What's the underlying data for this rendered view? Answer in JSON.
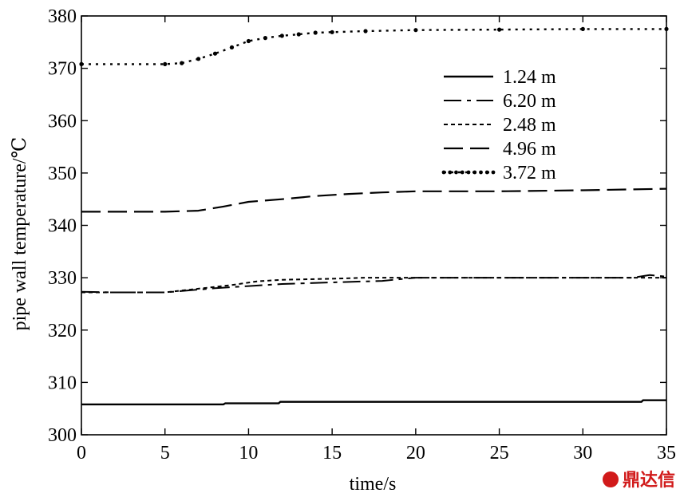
{
  "chart_data": {
    "type": "line",
    "title": "",
    "xlabel": "time/s",
    "ylabel": "pipe wall temperature/℃",
    "xlim": [
      0,
      35
    ],
    "ylim": [
      300,
      380
    ],
    "x_ticks": [
      0,
      5,
      10,
      15,
      20,
      25,
      30,
      35
    ],
    "y_ticks": [
      300,
      310,
      320,
      330,
      340,
      350,
      360,
      370,
      380
    ],
    "grid": false,
    "legend_position": "top-right",
    "series": [
      {
        "name": "1.24 m",
        "style": "solid",
        "points": [
          [
            0,
            305.8
          ],
          [
            5,
            305.8
          ],
          [
            8.5,
            305.8
          ],
          [
            8.6,
            306.0
          ],
          [
            11.8,
            306.0
          ],
          [
            11.9,
            306.3
          ],
          [
            20,
            306.3
          ],
          [
            33.5,
            306.3
          ],
          [
            33.6,
            306.6
          ],
          [
            35,
            306.6
          ]
        ]
      },
      {
        "name": "6.20 m",
        "style": "dash-dot",
        "points": [
          [
            0,
            327.3
          ],
          [
            2,
            327.2
          ],
          [
            5,
            327.2
          ],
          [
            6.5,
            327.6
          ],
          [
            8,
            328.0
          ],
          [
            10,
            328.4
          ],
          [
            12,
            328.8
          ],
          [
            15,
            329.1
          ],
          [
            18,
            329.4
          ],
          [
            20,
            330.0
          ],
          [
            25,
            330.0
          ],
          [
            30,
            330.0
          ],
          [
            33,
            330.0
          ],
          [
            34,
            330.5
          ],
          [
            35,
            330.2
          ]
        ]
      },
      {
        "name": "2.48 m",
        "style": "dotted-short",
        "points": [
          [
            0,
            327.2
          ],
          [
            5,
            327.2
          ],
          [
            7,
            327.9
          ],
          [
            9,
            328.6
          ],
          [
            10.5,
            329.3
          ],
          [
            12,
            329.6
          ],
          [
            15,
            329.8
          ],
          [
            17,
            330.0
          ],
          [
            20,
            330.0
          ],
          [
            25,
            330.0
          ],
          [
            30,
            330.0
          ],
          [
            35,
            330.0
          ]
        ]
      },
      {
        "name": "4.96 m",
        "style": "long-dash",
        "points": [
          [
            0,
            342.6
          ],
          [
            5,
            342.6
          ],
          [
            7,
            342.8
          ],
          [
            8.5,
            343.6
          ],
          [
            10,
            344.5
          ],
          [
            12,
            345.0
          ],
          [
            14,
            345.6
          ],
          [
            16,
            346.0
          ],
          [
            18,
            346.3
          ],
          [
            20,
            346.5
          ],
          [
            25,
            346.5
          ],
          [
            30,
            346.7
          ],
          [
            35,
            347.0
          ]
        ]
      },
      {
        "name": "3.72 m",
        "style": "dotted-diamond",
        "points": [
          [
            0,
            370.8
          ],
          [
            5,
            370.8
          ],
          [
            6,
            371.0
          ],
          [
            7,
            371.8
          ],
          [
            8,
            372.8
          ],
          [
            9,
            374.0
          ],
          [
            10,
            375.2
          ],
          [
            11,
            375.8
          ],
          [
            12,
            376.2
          ],
          [
            13,
            376.5
          ],
          [
            14,
            376.8
          ],
          [
            15,
            376.9
          ],
          [
            17,
            377.1
          ],
          [
            20,
            377.3
          ],
          [
            25,
            377.4
          ],
          [
            30,
            377.5
          ],
          [
            35,
            377.5
          ]
        ]
      }
    ]
  },
  "watermark": {
    "text": "鼎达信"
  }
}
